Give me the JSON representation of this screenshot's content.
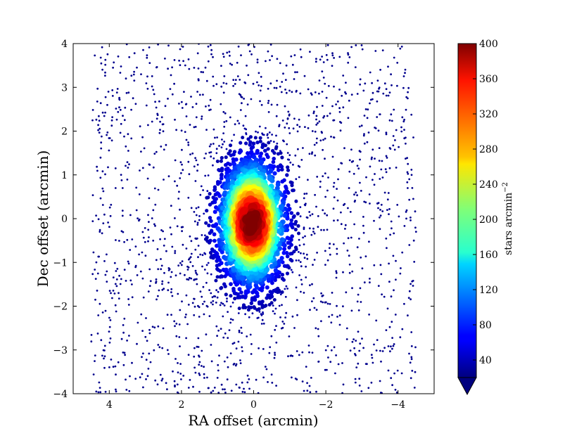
{
  "chart_data": {
    "type": "scatter",
    "title": "",
    "xlabel": "RA offset (arcmin)",
    "ylabel": "Dec offset (arcmin)",
    "xlim": [
      5,
      -5
    ],
    "ylim": [
      -4,
      4
    ],
    "x_inverted": true,
    "x_ticks": [
      4,
      2,
      0,
      -2,
      -4
    ],
    "x_tick_labels": [
      "4",
      "2",
      "0",
      "−2",
      "−4"
    ],
    "y_ticks": [
      -4,
      -3,
      -2,
      -1,
      0,
      1,
      2,
      3,
      4
    ],
    "y_tick_labels": [
      "−4",
      "−3",
      "−2",
      "−1",
      "0",
      "1",
      "2",
      "3",
      "4"
    ],
    "grid": false,
    "colorbar": {
      "label": "stars arcmin",
      "label_exponent": "−2",
      "range": [
        20,
        400
      ],
      "ticks": [
        40,
        80,
        120,
        160,
        200,
        240,
        280,
        320,
        360,
        400
      ],
      "tick_labels": [
        "40",
        "80",
        "120",
        "160",
        "200",
        "240",
        "280",
        "320",
        "360",
        "400"
      ],
      "extend": "min",
      "colormap": "jet"
    },
    "cluster": {
      "center": [
        0.05,
        -0.1
      ],
      "peak_density": 400,
      "background_density": 25
    }
  }
}
